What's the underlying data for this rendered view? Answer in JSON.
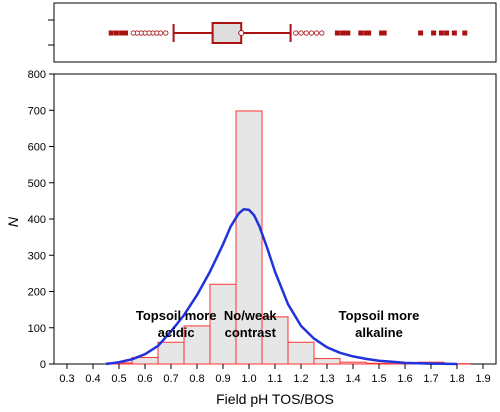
{
  "chart_data": {
    "type": "bar",
    "xlabel": "Field pH TOS/BOS",
    "ylabel": "N",
    "xlim": [
      0.25,
      1.95
    ],
    "ylim": [
      0,
      800
    ],
    "x_ticks": [
      0.3,
      0.4,
      0.5,
      0.6,
      0.7,
      0.8,
      0.9,
      1.0,
      1.1,
      1.2,
      1.3,
      1.4,
      1.5,
      1.6,
      1.7,
      1.8,
      1.9
    ],
    "y_ticks": [
      0,
      100,
      200,
      300,
      400,
      500,
      600,
      700,
      800
    ],
    "bin_width": 0.1,
    "histogram": {
      "bin_centers": [
        0.5,
        0.6,
        0.7,
        0.8,
        0.9,
        1.0,
        1.1,
        1.2,
        1.3,
        1.4,
        1.5,
        1.6,
        1.7,
        1.8
      ],
      "counts": [
        3,
        18,
        60,
        105,
        220,
        698,
        130,
        60,
        15,
        5,
        2,
        1,
        5,
        1
      ]
    },
    "fit_curve": {
      "x": [
        0.45,
        0.5,
        0.55,
        0.6,
        0.65,
        0.7,
        0.75,
        0.8,
        0.85,
        0.9,
        0.93,
        0.96,
        0.98,
        1.0,
        1.02,
        1.04,
        1.07,
        1.1,
        1.15,
        1.2,
        1.25,
        1.3,
        1.35,
        1.4,
        1.45,
        1.5,
        1.55,
        1.6,
        1.65,
        1.7,
        1.75,
        1.8
      ],
      "y": [
        0,
        5,
        13,
        27,
        50,
        90,
        135,
        190,
        255,
        330,
        380,
        415,
        427,
        425,
        410,
        380,
        320,
        255,
        165,
        105,
        70,
        46,
        31,
        21,
        14,
        9,
        6,
        3,
        2,
        1,
        0.5,
        0
      ]
    },
    "box_plot": {
      "q1": 0.86,
      "median": 0.94,
      "q3": 0.97,
      "whisker_low": 0.71,
      "whisker_high": 1.16,
      "outliers": [
        0.68,
        0.66,
        0.645,
        0.63,
        0.615,
        0.6,
        0.585,
        0.57,
        0.555,
        1.18,
        1.2,
        1.22,
        1.24,
        1.26,
        1.28
      ],
      "extremes": [
        0.47,
        0.49,
        0.51,
        0.525,
        1.34,
        1.36,
        1.37,
        1.38,
        1.43,
        1.45,
        1.46,
        1.51,
        1.52,
        1.66,
        1.71,
        1.74,
        1.76,
        1.79,
        1.83
      ]
    },
    "annotations": [
      {
        "lines": [
          "Topsoil more",
          "acidic"
        ],
        "x": 0.72,
        "y": 122
      },
      {
        "lines": [
          "No/weak",
          "contrast"
        ],
        "x": 1.005,
        "y": 122
      },
      {
        "lines": [
          "Topsoil more",
          "alkaline"
        ],
        "x": 1.5,
        "y": 122
      }
    ]
  },
  "colors": {
    "bar_fill": "#e6e6e6",
    "bar_stroke": "#ff3333",
    "curve": "#2233dd",
    "boxplot": "#aa1111"
  }
}
